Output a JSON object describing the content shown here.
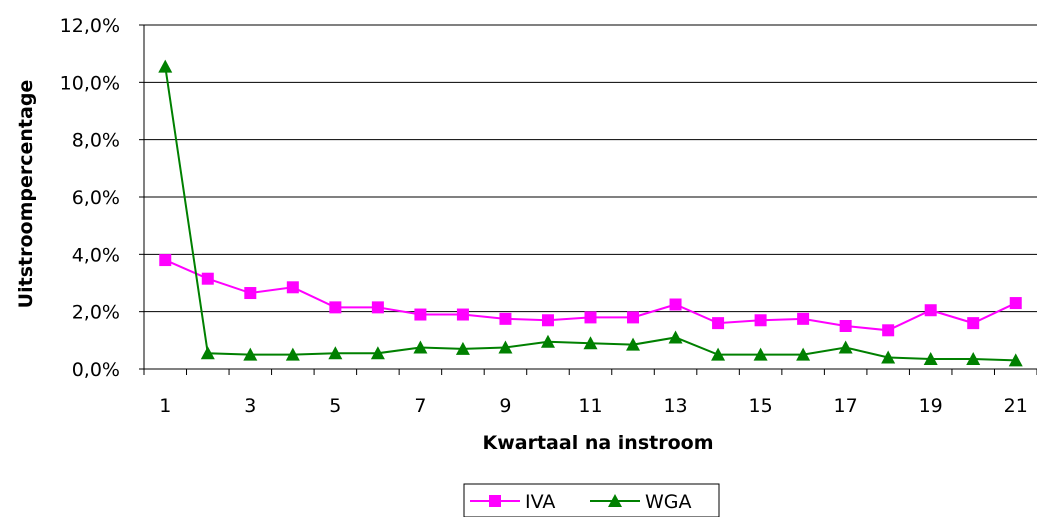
{
  "chart_data": {
    "type": "line",
    "xlabel": "Kwartaal na instroom",
    "ylabel": "Uitstroompercentage",
    "x": [
      1,
      2,
      3,
      4,
      5,
      6,
      7,
      8,
      9,
      10,
      11,
      12,
      13,
      14,
      15,
      16,
      17,
      18,
      19,
      20,
      21
    ],
    "x_tick_labels": [
      "1",
      "3",
      "5",
      "7",
      "9",
      "11",
      "13",
      "15",
      "17",
      "19",
      "21"
    ],
    "y_tick_labels": [
      "0,0%",
      "2,0%",
      "4,0%",
      "6,0%",
      "8,0%",
      "10,0%",
      "12,0%"
    ],
    "ylim": [
      0,
      12
    ],
    "grid": "horizontal",
    "legend_position": "bottom",
    "series": [
      {
        "name": "IVA",
        "color": "#ff00ff",
        "marker": "square",
        "values": [
          3.8,
          3.15,
          2.65,
          2.85,
          2.15,
          2.15,
          1.9,
          1.9,
          1.75,
          1.7,
          1.8,
          1.8,
          2.25,
          1.6,
          1.7,
          1.75,
          1.5,
          1.35,
          2.05,
          1.6,
          2.3
        ]
      },
      {
        "name": "WGA",
        "color": "#008000",
        "marker": "triangle",
        "values": [
          10.55,
          0.55,
          0.5,
          0.5,
          0.55,
          0.55,
          0.75,
          0.7,
          0.75,
          0.95,
          0.9,
          0.85,
          1.1,
          0.5,
          0.5,
          0.5,
          0.75,
          0.4,
          0.35,
          0.35,
          0.3
        ]
      }
    ]
  }
}
